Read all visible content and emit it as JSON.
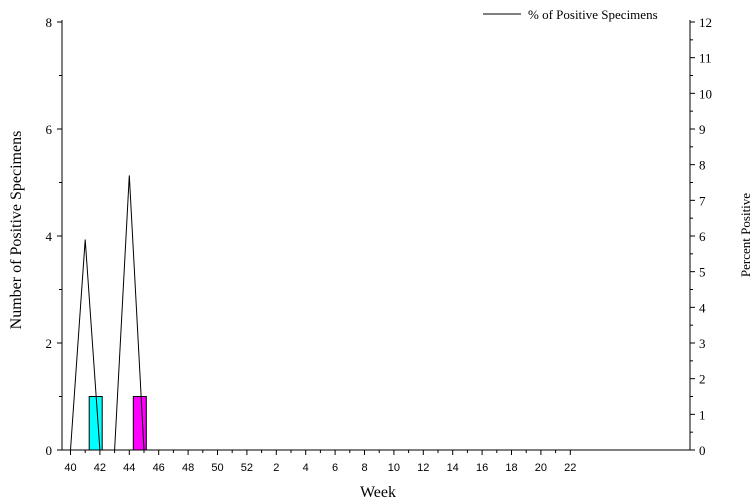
{
  "chart_data": {
    "type": "bar+line",
    "xlabel": "Week",
    "ylabel_left": "Number of Positive Specimens",
    "ylabel_right": "Percent Positive",
    "ylim_left": [
      0,
      8
    ],
    "ylim_right": [
      0,
      12
    ],
    "weeks": [
      40,
      41,
      42,
      43,
      44,
      45,
      46,
      47,
      48,
      49,
      50,
      51,
      52,
      1,
      2,
      3,
      4,
      5,
      6,
      7,
      8,
      9,
      10,
      11,
      12,
      13,
      14,
      15,
      16,
      17,
      18,
      19,
      20,
      21,
      22
    ],
    "x_tick_labels": [
      "40",
      "42",
      "44",
      "46",
      "48",
      "50",
      "52",
      "2",
      "4",
      "6",
      "8",
      "10",
      "12",
      "14",
      "16",
      "18",
      "20",
      "22"
    ],
    "y_left_tick_labels": [
      "0",
      "2",
      "4",
      "6",
      "8"
    ],
    "y_right_tick_labels": [
      "0",
      "1",
      "2",
      "3",
      "4",
      "5",
      "6",
      "7",
      "8",
      "9",
      "10",
      "11",
      "12"
    ],
    "bar_series": [
      {
        "color": "#00ffff",
        "values": [
          0,
          1,
          0,
          0,
          0,
          0,
          0,
          0,
          0,
          0,
          0,
          0,
          0,
          0,
          0,
          0,
          0,
          0,
          0,
          0,
          0,
          0,
          0,
          0,
          0,
          0,
          0,
          0,
          0,
          0,
          0,
          0,
          0,
          0,
          0
        ]
      },
      {
        "color": "#ff00ff",
        "values": [
          0,
          0,
          0,
          0,
          1,
          0,
          0,
          0,
          0,
          0,
          0,
          0,
          0,
          0,
          0,
          0,
          0,
          0,
          0,
          0,
          0,
          0,
          0,
          0,
          0,
          0,
          0,
          0,
          0,
          0,
          0,
          0,
          0,
          0,
          0
        ]
      }
    ],
    "line_series": {
      "name": "% of Positive Specimens",
      "color": "#000000",
      "values": [
        0,
        5.9,
        0,
        0,
        7.7,
        0,
        0,
        0,
        0,
        0,
        0,
        0,
        0,
        0,
        0,
        0,
        0,
        0,
        0,
        0,
        0,
        0,
        0,
        0,
        0,
        0,
        0,
        0,
        0,
        0,
        0,
        0,
        0,
        0,
        0
      ]
    },
    "legend_position": "top-right"
  }
}
